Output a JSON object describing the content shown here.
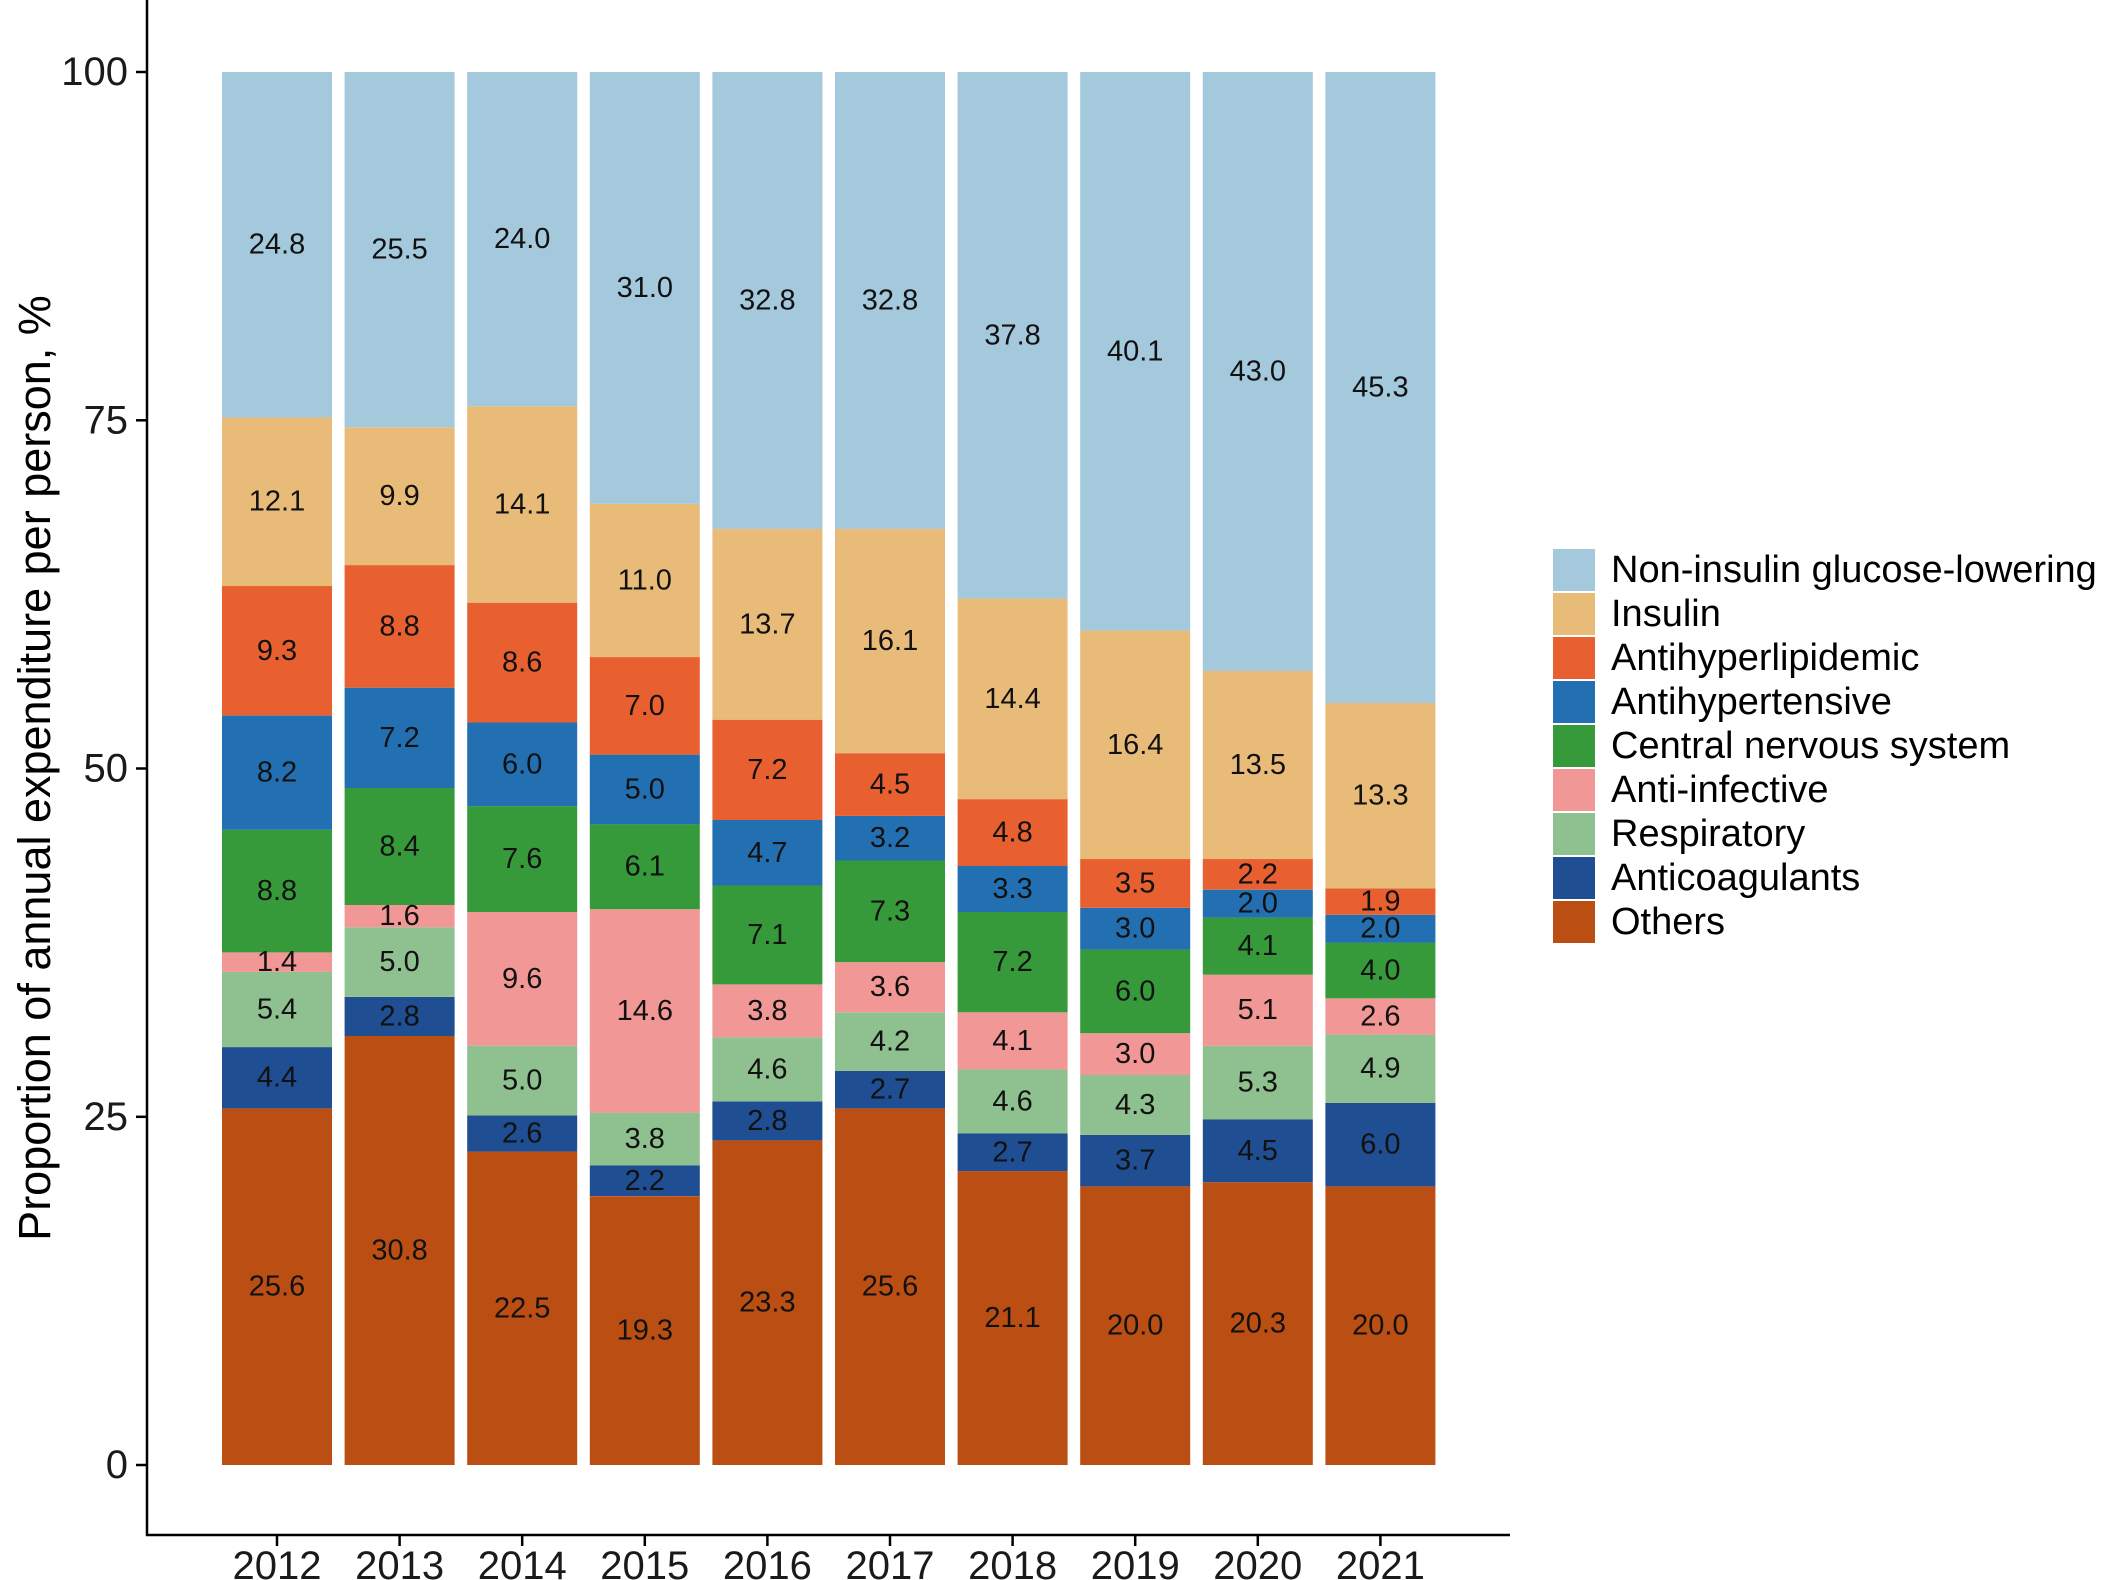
{
  "chart_data": {
    "type": "bar",
    "stacked": true,
    "ylabel": "Proportion of annual expenditure per person, %",
    "xlabel": "",
    "ylim": [
      0,
      100
    ],
    "yticks": [
      0,
      25,
      50,
      75,
      100
    ],
    "grid": false,
    "legend_position": "right",
    "categories": [
      "2012",
      "2013",
      "2014",
      "2015",
      "2016",
      "2017",
      "2018",
      "2019",
      "2020",
      "2021"
    ],
    "series": [
      {
        "name": "Others",
        "color": "#bb4f13",
        "values": [
          25.6,
          30.8,
          22.5,
          19.3,
          23.3,
          25.6,
          21.1,
          20.0,
          20.3,
          20.0
        ]
      },
      {
        "name": "Anticoagulants",
        "color": "#1f4e93",
        "values": [
          4.4,
          2.8,
          2.6,
          2.2,
          2.8,
          2.7,
          2.7,
          3.7,
          4.5,
          6.0
        ]
      },
      {
        "name": "Respiratory",
        "color": "#8fc08f",
        "values": [
          5.4,
          5.0,
          5.0,
          3.8,
          4.6,
          4.2,
          4.6,
          4.3,
          5.3,
          4.9
        ]
      },
      {
        "name": "Anti-infective",
        "color": "#f19796",
        "values": [
          1.4,
          1.6,
          9.6,
          14.6,
          3.8,
          3.6,
          4.1,
          3.0,
          5.1,
          2.6
        ]
      },
      {
        "name": "Central nervous system",
        "color": "#369a3a",
        "values": [
          8.8,
          8.4,
          7.6,
          6.1,
          7.1,
          7.3,
          7.2,
          6.0,
          4.1,
          4.0
        ]
      },
      {
        "name": "Antihypertensive",
        "color": "#2270b1",
        "values": [
          8.2,
          7.2,
          6.0,
          5.0,
          4.7,
          3.2,
          3.3,
          3.0,
          2.0,
          2.0
        ]
      },
      {
        "name": "Antihyperlipidemic",
        "color": "#e86030",
        "values": [
          9.3,
          8.8,
          8.6,
          7.0,
          7.2,
          4.5,
          4.8,
          3.5,
          2.2,
          1.9
        ]
      },
      {
        "name": "Insulin",
        "color": "#e9bb79",
        "values": [
          12.1,
          9.9,
          14.1,
          11.0,
          13.7,
          16.1,
          14.4,
          16.4,
          13.5,
          13.3
        ]
      },
      {
        "name": "Non-insulin glucose-lowering",
        "color": "#a4c8dc",
        "values": [
          24.8,
          25.5,
          24.0,
          31.0,
          32.8,
          32.8,
          37.8,
          40.1,
          43.0,
          45.3
        ]
      }
    ],
    "legend_order": [
      "Non-insulin glucose-lowering",
      "Insulin",
      "Antihyperlipidemic",
      "Antihypertensive",
      "Central nervous system",
      "Anti-infective",
      "Respiratory",
      "Anticoagulants",
      "Others"
    ]
  }
}
